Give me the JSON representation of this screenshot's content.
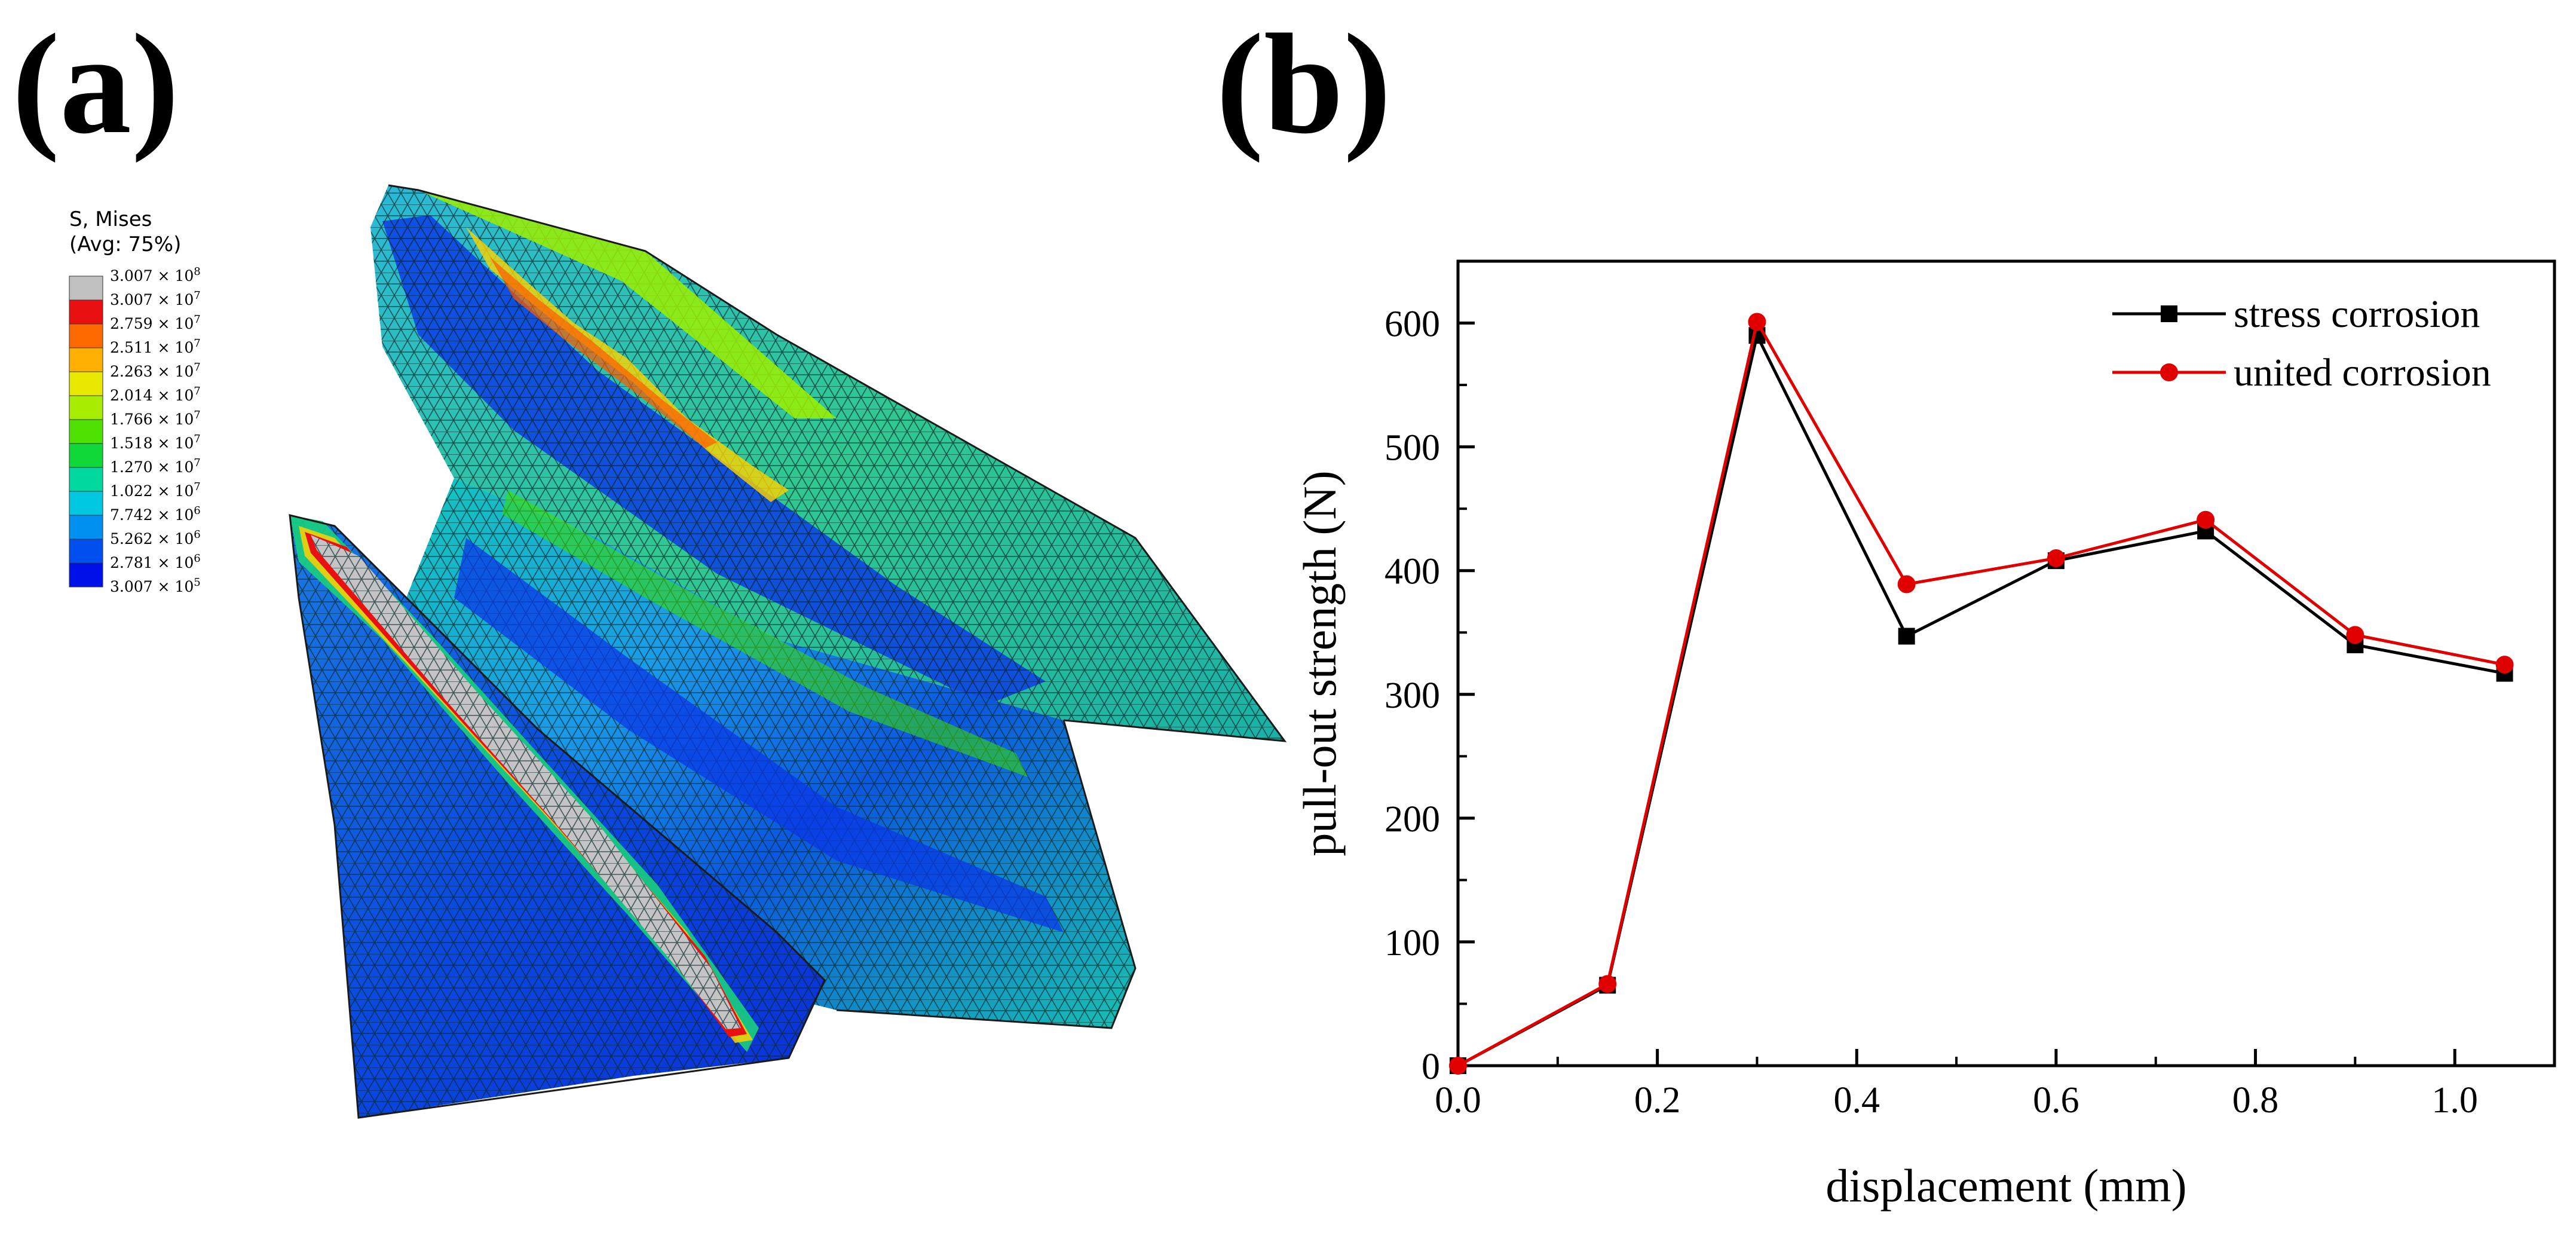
{
  "panels": {
    "a_label": "(a)",
    "b_label": "(b)"
  },
  "fem_legend": {
    "title_line1": "S, Mises",
    "title_line2": "(Avg: 75%)",
    "entries": [
      {
        "mantissa": "3.007",
        "exponent": "8",
        "color": "#c0c0c0"
      },
      {
        "mantissa": "3.007",
        "exponent": "7",
        "color": "#e81010"
      },
      {
        "mantissa": "2.759",
        "exponent": "7",
        "color": "#ff6a00"
      },
      {
        "mantissa": "2.511",
        "exponent": "7",
        "color": "#ffb000"
      },
      {
        "mantissa": "2.263",
        "exponent": "7",
        "color": "#e8e800"
      },
      {
        "mantissa": "2.014",
        "exponent": "7",
        "color": "#a8ec00"
      },
      {
        "mantissa": "1.766",
        "exponent": "7",
        "color": "#4ee000"
      },
      {
        "mantissa": "1.518",
        "exponent": "7",
        "color": "#10d838"
      },
      {
        "mantissa": "1.270",
        "exponent": "7",
        "color": "#00d8a0"
      },
      {
        "mantissa": "1.022",
        "exponent": "7",
        "color": "#00c8e0"
      },
      {
        "mantissa": "7.742",
        "exponent": "6",
        "color": "#0090f0"
      },
      {
        "mantissa": "5.262",
        "exponent": "6",
        "color": "#0050f0"
      },
      {
        "mantissa": "2.781",
        "exponent": "6",
        "color": "#0010e8"
      },
      {
        "mantissa": "3.007",
        "exponent": "5",
        "color": null
      }
    ]
  },
  "chart_data": {
    "type": "line",
    "title": "",
    "xlabel": "displacement (mm)",
    "ylabel": "pull-out strength (N)",
    "xlim": [
      0,
      1.1
    ],
    "ylim": [
      0,
      650
    ],
    "xticks": [
      0.0,
      0.2,
      0.4,
      0.6,
      0.8,
      1.0
    ],
    "xtick_labels": [
      "0.0",
      "0.2",
      "0.4",
      "0.6",
      "0.8",
      "1.0"
    ],
    "yticks": [
      0,
      100,
      200,
      300,
      400,
      500,
      600
    ],
    "ytick_labels": [
      "0",
      "100",
      "200",
      "300",
      "400",
      "500",
      "600"
    ],
    "legend_position": "top-right",
    "grid": false,
    "series": [
      {
        "name": "stress corrosion",
        "color": "#000000",
        "marker": "square",
        "x": [
          0,
          0.15,
          0.3,
          0.45,
          0.6,
          0.75,
          0.9,
          1.05
        ],
        "y": [
          0,
          65,
          590,
          347,
          408,
          432,
          340,
          317
        ]
      },
      {
        "name": "united corrosion",
        "color": "#e00000",
        "marker": "circle",
        "x": [
          0,
          0.15,
          0.3,
          0.45,
          0.6,
          0.75,
          0.9,
          1.05
        ],
        "y": [
          0,
          66,
          601,
          389,
          410,
          441,
          348,
          324
        ]
      }
    ]
  }
}
